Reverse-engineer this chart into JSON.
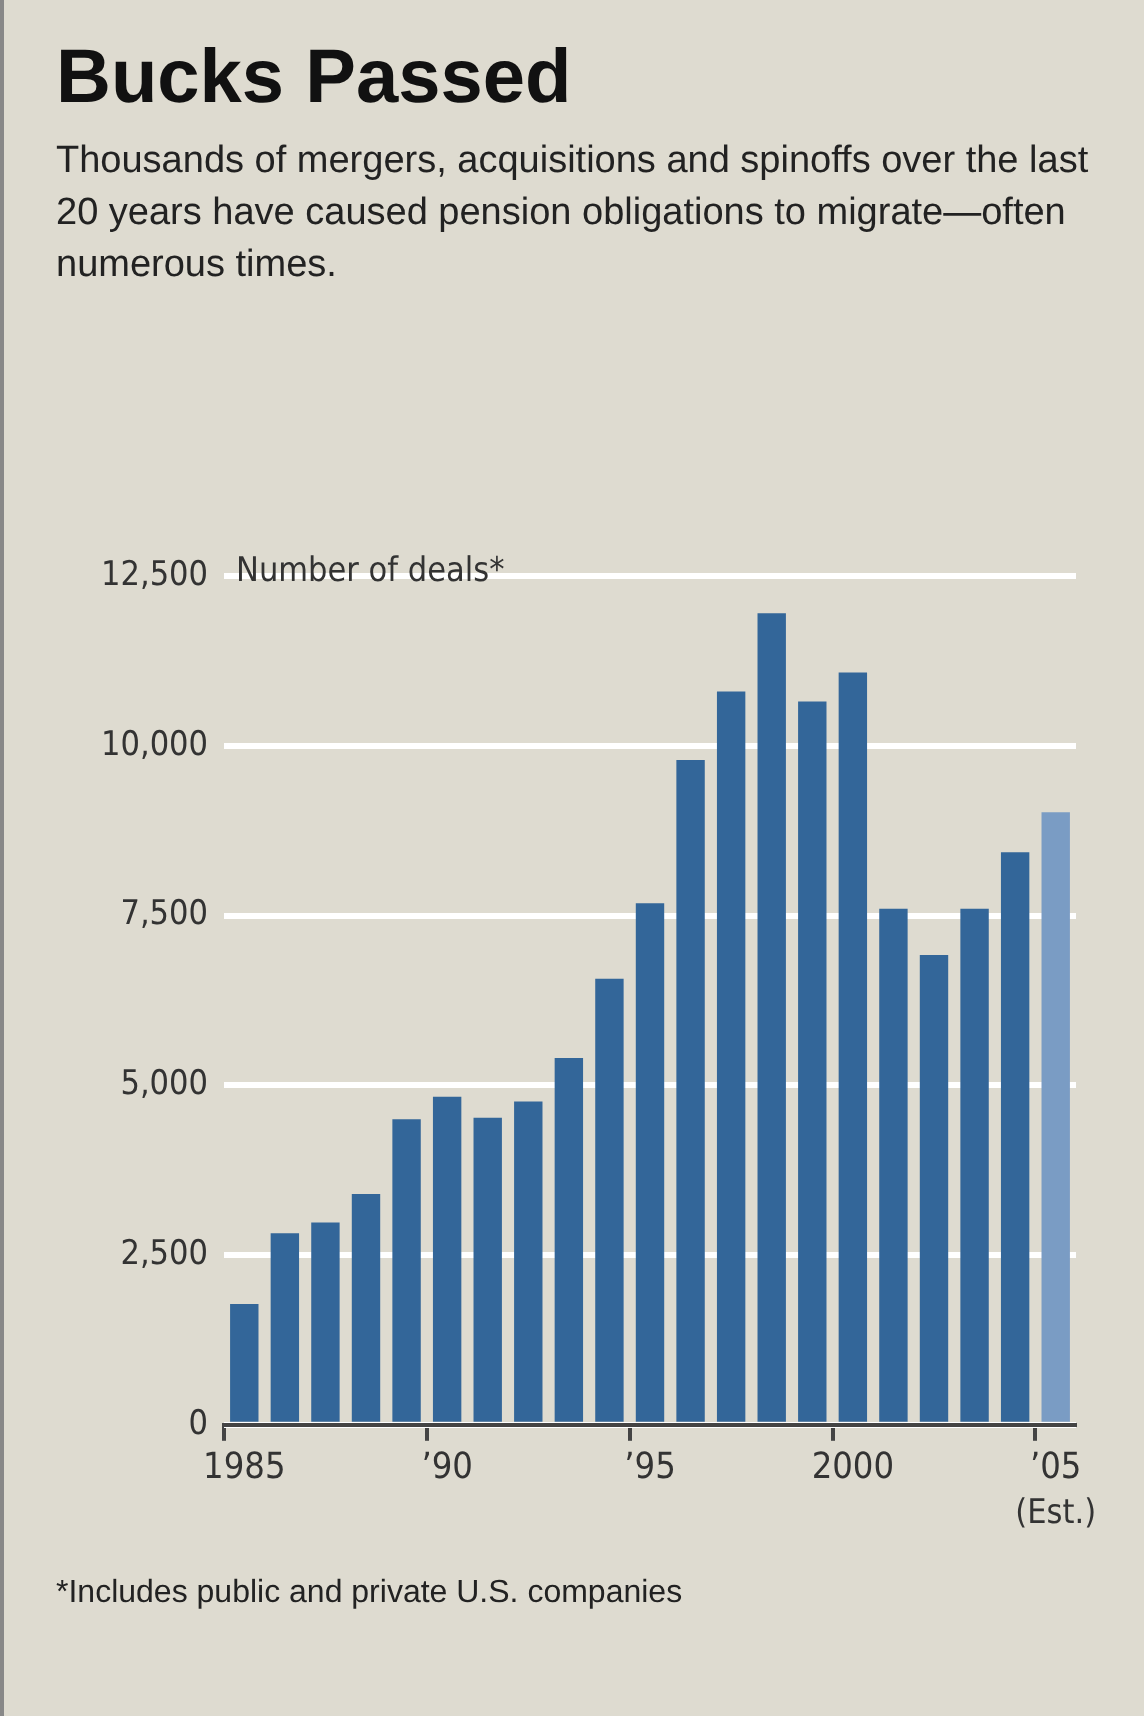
{
  "chart_data": {
    "type": "bar",
    "title": "Bucks Passed",
    "subtitle": "Thousands of mergers, acquisitions and spinoffs over the last 20 years have caused pension obligations to migrate—often numerous times.",
    "ylabel": "Number of deals*",
    "categories": [
      "1985",
      null,
      null,
      null,
      null,
      "’90",
      null,
      null,
      null,
      null,
      "’95",
      null,
      null,
      null,
      null,
      "2000",
      null,
      null,
      null,
      null,
      "’05"
    ],
    "values": [
      1780,
      2820,
      2980,
      3400,
      4500,
      4830,
      4520,
      4760,
      5400,
      6570,
      7680,
      9790,
      10800,
      11950,
      10650,
      11080,
      7600,
      6920,
      7600,
      8430,
      9020
    ],
    "colors": [
      "#336699",
      "#336699",
      "#336699",
      "#336699",
      "#336699",
      "#336699",
      "#336699",
      "#336699",
      "#336699",
      "#336699",
      "#336699",
      "#336699",
      "#336699",
      "#336699",
      "#336699",
      "#336699",
      "#336699",
      "#336699",
      "#336699",
      "#336699",
      "#7a9cc4"
    ],
    "ylim": [
      0,
      12500
    ],
    "yticks": [
      0,
      {
        "value": 2500,
        "label": "2,500"
      },
      {
        "value": 5000,
        "label": "5,000"
      },
      {
        "value": 7500,
        "label": "7,500"
      },
      {
        "value": 10000,
        "label": "10,000"
      },
      {
        "value": 12500,
        "label": "12,500"
      }
    ],
    "grid": "y",
    "legend": false,
    "annotations": [
      "(Est.)",
      "*Includes public and private U.S. companies"
    ]
  }
}
